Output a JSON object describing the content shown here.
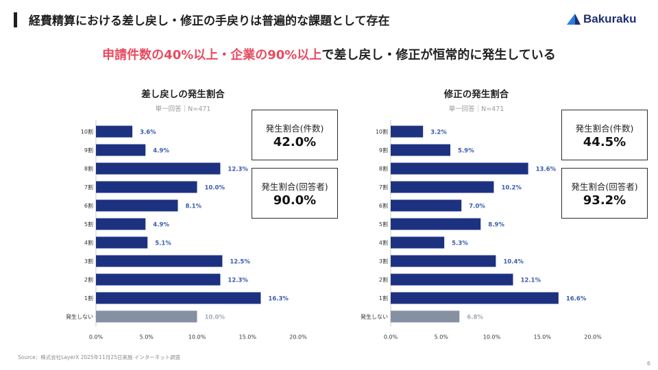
{
  "header": {
    "title": "経費精算における差し戻し・修正の手戻りは普遍的な課題として存在",
    "brand": "Bakuraku"
  },
  "headline": {
    "highlight": "申請件数の40%以上・企業の90%以上",
    "rest": "で差し戻し・修正が恒常的に発生している"
  },
  "colors": {
    "bar": "#1c3281",
    "bar_none": "#8590a3",
    "label": "#3b5ba9",
    "label_none": "#a3aab8",
    "highlight": "#e84a5f"
  },
  "chart_data": [
    {
      "type": "bar",
      "orientation": "horizontal",
      "title": "差し戻しの発生割合",
      "subtitle": "単一回答｜N=471",
      "categories": [
        "10割",
        "9割",
        "8割",
        "7割",
        "6割",
        "5割",
        "4割",
        "3割",
        "2割",
        "1割",
        "発生しない"
      ],
      "values": [
        3.6,
        4.9,
        12.3,
        10.0,
        8.1,
        4.9,
        5.1,
        12.5,
        12.3,
        16.3,
        10.0
      ],
      "value_labels": [
        "3.6%",
        "4.9%",
        "12.3%",
        "10.0%",
        "8.1%",
        "4.9%",
        "5.1%",
        "12.5%",
        "12.3%",
        "16.3%",
        "10.0%"
      ],
      "x_ticks": [
        "0.0%",
        "5.0%",
        "10.0%",
        "15.0%",
        "20.0%"
      ],
      "xlim": [
        0,
        20
      ],
      "stats": [
        {
          "label": "発生割合(件数)",
          "value": "42.0%"
        },
        {
          "label": "発生割合(回答者)",
          "value": "90.0%"
        }
      ]
    },
    {
      "type": "bar",
      "orientation": "horizontal",
      "title": "修正の発生割合",
      "subtitle": "単一回答｜N=471",
      "categories": [
        "10割",
        "9割",
        "8割",
        "7割",
        "6割",
        "5割",
        "4割",
        "3割",
        "2割",
        "1割",
        "発生しない"
      ],
      "values": [
        3.2,
        5.9,
        13.6,
        10.2,
        7.0,
        8.9,
        5.3,
        10.4,
        12.1,
        16.6,
        6.8
      ],
      "value_labels": [
        "3.2%",
        "5.9%",
        "13.6%",
        "10.2%",
        "7.0%",
        "8.9%",
        "5.3%",
        "10.4%",
        "12.1%",
        "16.6%",
        "6.8%"
      ],
      "x_ticks": [
        "0.0%",
        "5.0%",
        "10.0%",
        "15.0%",
        "20.0%"
      ],
      "xlim": [
        0,
        20
      ],
      "stats": [
        {
          "label": "発生割合(件数)",
          "value": "44.5%"
        },
        {
          "label": "発生割合(回答者)",
          "value": "93.2%"
        }
      ]
    }
  ],
  "footer": {
    "source": "Source：株式会社LayerX 2025年11月25日実施 インターネット調査",
    "page": "6"
  }
}
